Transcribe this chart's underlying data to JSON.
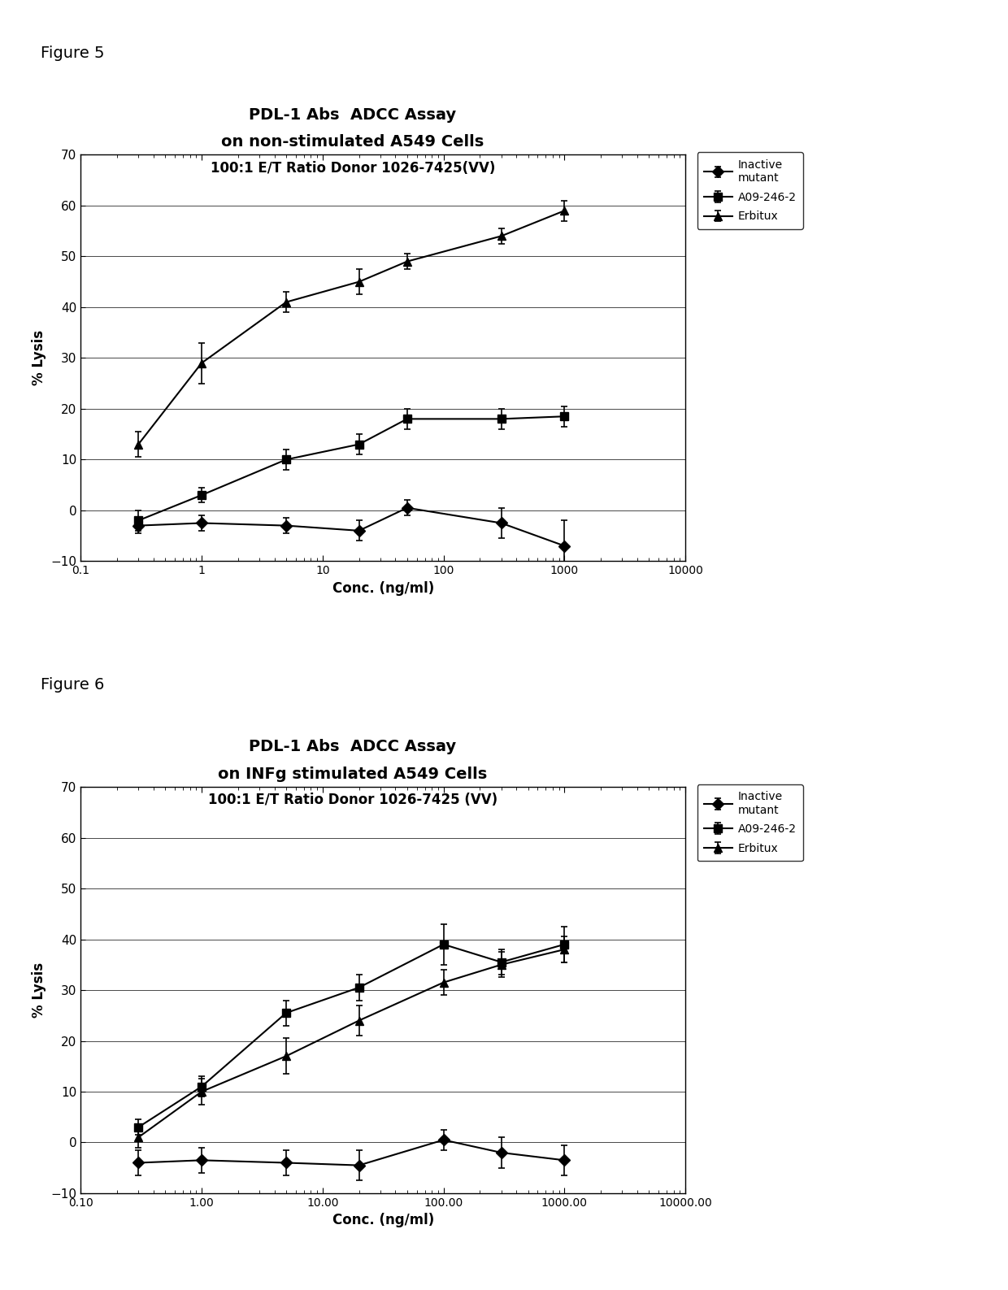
{
  "fig5": {
    "title_line1": "PDL-1 Abs  ADCC Assay",
    "title_line2": "on non-stimulated A549 Cells",
    "title_line3": "100:1 E/T Ratio Donor 1026-7425(VV)",
    "xlabel": "Conc. (ng/ml)",
    "ylabel": "% Lysis",
    "ylim": [
      -10,
      70
    ],
    "yticks": [
      -10,
      0,
      10,
      20,
      30,
      40,
      50,
      60,
      70
    ],
    "xlim_log": [
      0.1,
      10000
    ],
    "figure_label": "Figure 5",
    "xtick_labels": [
      "0.1",
      "1",
      "10",
      "100",
      "1000",
      "10000"
    ],
    "series": {
      "inactive_mutant": {
        "label": "Inactive\nmutant",
        "x": [
          0.3,
          1.0,
          5.0,
          20.0,
          50.0,
          300.0,
          1000.0
        ],
        "y": [
          -3.0,
          -2.5,
          -3.0,
          -4.0,
          0.5,
          -2.5,
          -7.0
        ],
        "yerr": [
          1.5,
          1.5,
          1.5,
          2.0,
          1.5,
          3.0,
          5.0
        ],
        "marker": "D",
        "color": "black",
        "linestyle": "-"
      },
      "A09_246_2": {
        "label": "A09-246-2",
        "x": [
          0.3,
          1.0,
          5.0,
          20.0,
          50.0,
          300.0,
          1000.0
        ],
        "y": [
          -2.0,
          3.0,
          10.0,
          13.0,
          18.0,
          18.0,
          18.5
        ],
        "yerr": [
          2.0,
          1.5,
          2.0,
          2.0,
          2.0,
          2.0,
          2.0
        ],
        "marker": "s",
        "color": "black",
        "linestyle": "-"
      },
      "erbitux": {
        "label": "Erbitux",
        "x": [
          0.3,
          1.0,
          5.0,
          20.0,
          50.0,
          300.0,
          1000.0
        ],
        "y": [
          13.0,
          29.0,
          41.0,
          45.0,
          49.0,
          54.0,
          59.0
        ],
        "yerr": [
          2.5,
          4.0,
          2.0,
          2.5,
          1.5,
          1.5,
          2.0
        ],
        "marker": "^",
        "color": "black",
        "linestyle": "-"
      }
    }
  },
  "fig6": {
    "title_line1": "PDL-1 Abs  ADCC Assay",
    "title_line2": "on INFg stimulated A549 Cells",
    "title_line3": "100:1 E/T Ratio Donor 1026-7425 (VV)",
    "xlabel": "Conc. (ng/ml)",
    "ylabel": "% Lysis",
    "ylim": [
      -10,
      70
    ],
    "yticks": [
      -10,
      0,
      10,
      20,
      30,
      40,
      50,
      60,
      70
    ],
    "xlim_log": [
      0.1,
      10000
    ],
    "figure_label": "Figure 6",
    "xtick_labels": [
      "0.10",
      "1.00",
      "10.00",
      "100.00",
      "1000.00",
      "10000.00"
    ],
    "series": {
      "inactive_mutant": {
        "label": "Inactive\nmutant",
        "x": [
          0.3,
          1.0,
          5.0,
          20.0,
          100.0,
          300.0,
          1000.0
        ],
        "y": [
          -4.0,
          -3.5,
          -4.0,
          -4.5,
          0.5,
          -2.0,
          -3.5
        ],
        "yerr": [
          2.5,
          2.5,
          2.5,
          3.0,
          2.0,
          3.0,
          3.0
        ],
        "marker": "D",
        "color": "black",
        "linestyle": "-"
      },
      "A09_246_2": {
        "label": "A09-246-2",
        "x": [
          0.3,
          1.0,
          5.0,
          20.0,
          100.0,
          300.0,
          1000.0
        ],
        "y": [
          3.0,
          11.0,
          25.5,
          30.5,
          39.0,
          35.5,
          39.0
        ],
        "yerr": [
          1.5,
          2.0,
          2.5,
          2.5,
          4.0,
          2.5,
          3.5
        ],
        "marker": "s",
        "color": "black",
        "linestyle": "-"
      },
      "erbitux": {
        "label": "Erbitux",
        "x": [
          0.3,
          1.0,
          5.0,
          20.0,
          100.0,
          300.0,
          1000.0
        ],
        "y": [
          1.0,
          10.0,
          17.0,
          24.0,
          31.5,
          35.0,
          38.0
        ],
        "yerr": [
          2.0,
          2.5,
          3.5,
          3.0,
          2.5,
          2.5,
          2.5
        ],
        "marker": "^",
        "color": "black",
        "linestyle": "-"
      }
    }
  },
  "background_color": "#ffffff",
  "markersize": 7,
  "linewidth": 1.5,
  "elinewidth": 1.2,
  "capsize": 3
}
